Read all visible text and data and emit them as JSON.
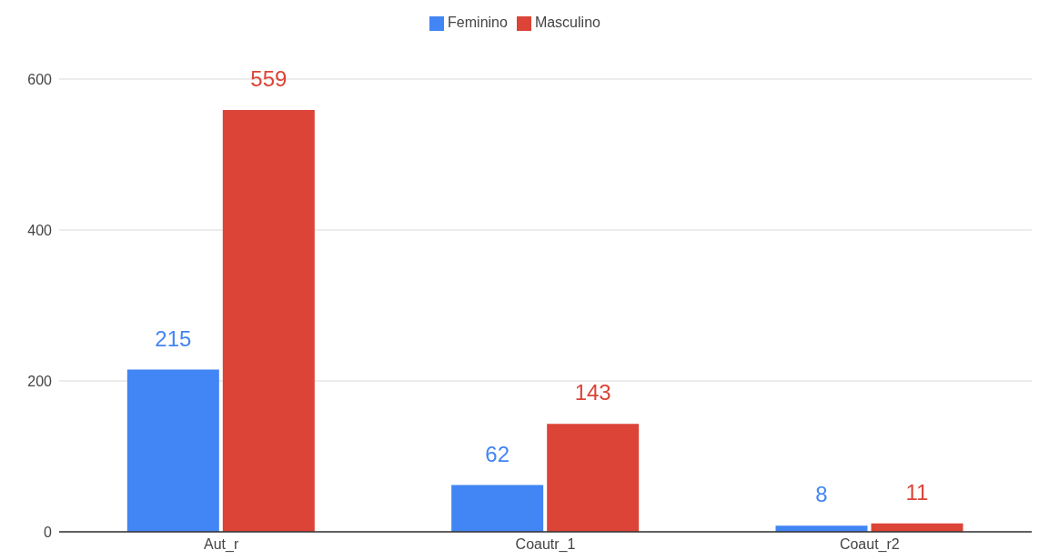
{
  "chart_data": {
    "type": "bar",
    "categories": [
      "Aut_r",
      "Coautr_1",
      "Coaut_r2"
    ],
    "series": [
      {
        "name": "Feminino",
        "color": "#4285f4",
        "values": [
          215,
          62,
          8
        ]
      },
      {
        "name": "Masculino",
        "color": "#db4437",
        "values": [
          559,
          143,
          11
        ]
      }
    ],
    "ylim": [
      0,
      600
    ],
    "yticks": [
      0,
      200,
      400,
      600
    ],
    "grid": "y",
    "legend": "top",
    "data_labels": true
  }
}
